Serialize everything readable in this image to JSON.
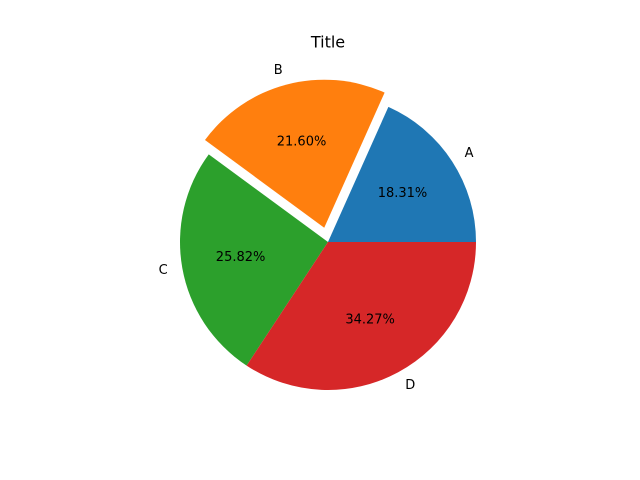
{
  "chart_data": {
    "type": "pie",
    "title": "Title",
    "categories": [
      "A",
      "B",
      "C",
      "D"
    ],
    "values": [
      18.31,
      21.6,
      25.82,
      34.27
    ],
    "value_labels": [
      "18.31%",
      "21.60%",
      "25.82%",
      "34.27%"
    ],
    "colors": [
      "#1f77b4",
      "#ff7f0e",
      "#2ca02c",
      "#d62728"
    ],
    "explode": [
      0,
      0.1,
      0,
      0
    ]
  }
}
